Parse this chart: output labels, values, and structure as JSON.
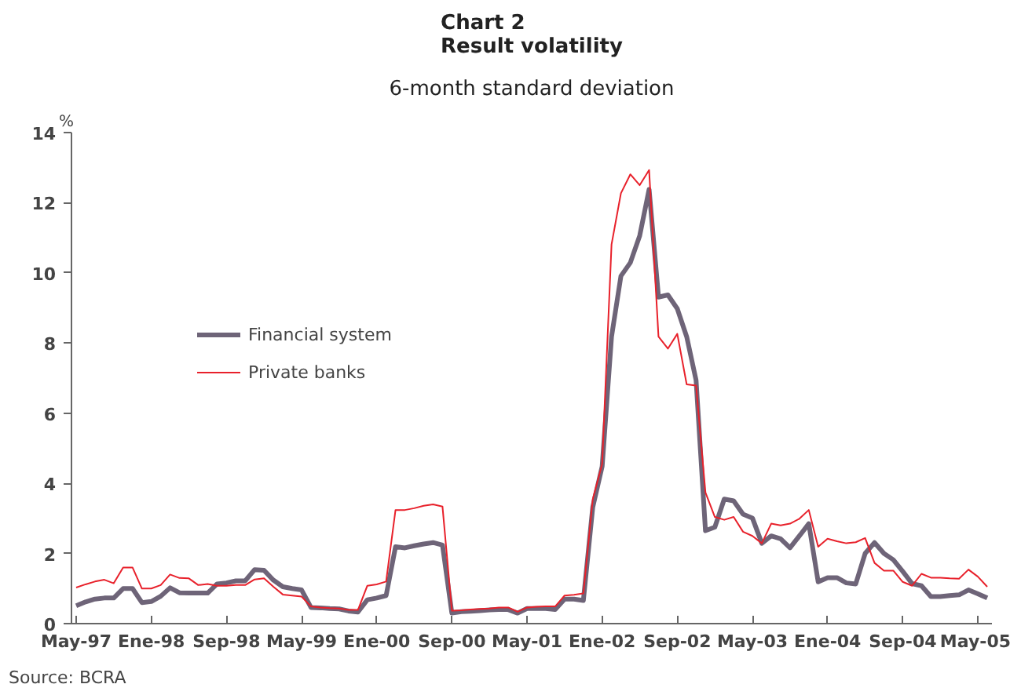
{
  "chart_data": {
    "type": "line",
    "title": "Chart 2\nResult volatility",
    "subtitle": "6-month standard deviation",
    "ylabel": "%",
    "categories": [
      "May-97",
      null,
      null,
      null,
      null,
      null,
      null,
      null,
      "Ene-98",
      null,
      null,
      null,
      null,
      null,
      null,
      null,
      "Sep-98",
      null,
      null,
      null,
      null,
      null,
      null,
      null,
      "May-99",
      null,
      null,
      null,
      null,
      null,
      null,
      null,
      "Ene-00",
      null,
      null,
      null,
      null,
      null,
      null,
      null,
      "Sep-00",
      null,
      null,
      null,
      null,
      null,
      null,
      null,
      "May-01",
      null,
      null,
      null,
      null,
      null,
      null,
      null,
      "Ene-02",
      null,
      null,
      null,
      null,
      null,
      null,
      null,
      "Sep-02",
      null,
      null,
      null,
      null,
      null,
      null,
      null,
      "May-03",
      null,
      null,
      null,
      null,
      null,
      null,
      null,
      "Ene-04",
      null,
      null,
      null,
      null,
      null,
      null,
      null,
      "Sep-04",
      null,
      null,
      null,
      null,
      null,
      null,
      null,
      "May-05",
      null
    ],
    "series": [
      {
        "name": "Financial system",
        "color": "#6e6478",
        "values": [
          0.51,
          0.62,
          0.7,
          0.73,
          0.73,
          1.0,
          1.0,
          0.6,
          0.63,
          0.78,
          1.02,
          0.88,
          0.87,
          0.87,
          0.87,
          1.13,
          1.16,
          1.22,
          1.22,
          1.54,
          1.52,
          1.24,
          1.05,
          1.0,
          0.96,
          0.46,
          0.45,
          0.43,
          0.42,
          0.36,
          0.33,
          0.68,
          0.73,
          0.8,
          2.19,
          2.16,
          2.22,
          2.27,
          2.31,
          2.24,
          0.3,
          0.34,
          0.35,
          0.37,
          0.39,
          0.4,
          0.4,
          0.3,
          0.43,
          0.43,
          0.43,
          0.4,
          0.7,
          0.7,
          0.66,
          3.32,
          4.48,
          8.18,
          9.91,
          10.29,
          11.06,
          12.38,
          9.31,
          9.37,
          8.98,
          8.18,
          6.94,
          2.65,
          2.75,
          3.55,
          3.5,
          3.12,
          3.01,
          2.29,
          2.5,
          2.42,
          2.16,
          2.5,
          2.85,
          1.19,
          1.31,
          1.31,
          1.16,
          1.13,
          2.0,
          2.31,
          2.0,
          1.82,
          1.49,
          1.14,
          1.08,
          0.77,
          0.77,
          0.8,
          0.82,
          0.96,
          0.85,
          0.73
        ]
      },
      {
        "name": "Private banks",
        "color": "#e8212b",
        "values": [
          1.03,
          1.12,
          1.2,
          1.25,
          1.15,
          1.6,
          1.6,
          1.0,
          1.0,
          1.1,
          1.4,
          1.3,
          1.29,
          1.1,
          1.13,
          1.08,
          1.08,
          1.1,
          1.1,
          1.26,
          1.29,
          1.05,
          0.83,
          0.8,
          0.77,
          0.49,
          0.46,
          0.44,
          0.43,
          0.39,
          0.39,
          1.08,
          1.12,
          1.2,
          3.24,
          3.24,
          3.29,
          3.36,
          3.4,
          3.34,
          0.37,
          0.38,
          0.4,
          0.42,
          0.43,
          0.46,
          0.46,
          0.34,
          0.46,
          0.48,
          0.49,
          0.49,
          0.8,
          0.82,
          0.86,
          3.55,
          4.55,
          10.81,
          12.27,
          12.81,
          12.5,
          12.93,
          8.18,
          7.84,
          8.26,
          6.82,
          6.79,
          3.74,
          3.04,
          2.96,
          3.04,
          2.62,
          2.5,
          2.29,
          2.85,
          2.8,
          2.85,
          2.99,
          3.24,
          2.19,
          2.42,
          2.35,
          2.29,
          2.32,
          2.44,
          1.73,
          1.51,
          1.51,
          1.19,
          1.08,
          1.42,
          1.31,
          1.31,
          1.29,
          1.28,
          1.54,
          1.34,
          1.05
        ]
      }
    ],
    "ylim": [
      0,
      14
    ],
    "yticks": [
      0,
      2,
      4,
      6,
      8,
      10,
      12,
      14
    ],
    "grid": false,
    "legend": "left",
    "annotations": [
      "Source: BCRA"
    ]
  }
}
